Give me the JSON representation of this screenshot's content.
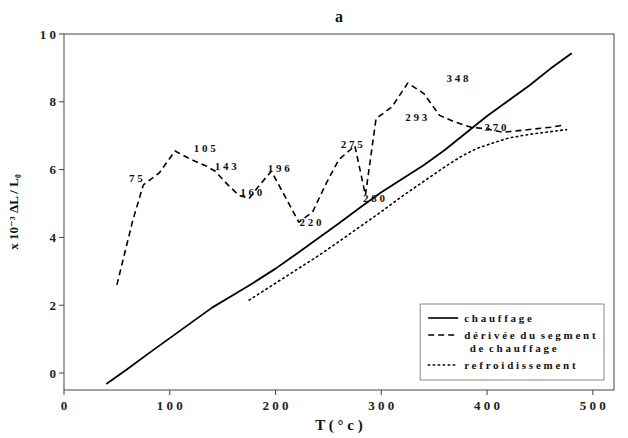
{
  "chart_data": {
    "type": "line",
    "title": "a",
    "xlabel": "T  ( ° c )",
    "ylabel": "x  10⁻³ ΔL / L₀",
    "xlim": [
      0,
      520
    ],
    "ylim": [
      -0.5,
      10
    ],
    "xticks": [
      0,
      {
        "value": 100,
        "label": "1 0 0"
      },
      {
        "value": 200,
        "label": "2 0 0"
      },
      {
        "value": 300,
        "label": "3 0 0"
      },
      {
        "value": 400,
        "label": "4 0 0"
      },
      {
        "value": 500,
        "label": "5 0 0"
      }
    ],
    "yticks": [
      0,
      2,
      4,
      6,
      8,
      {
        "value": 10,
        "label": "1 0"
      }
    ],
    "grid": false,
    "legend": "lower right",
    "series": [
      {
        "name": "c h a u f f a g e",
        "color": "black",
        "line_style": "solid",
        "x": [
          40,
          60,
          80,
          100,
          120,
          140,
          160,
          180,
          200,
          220,
          240,
          260,
          280,
          300,
          320,
          340,
          360,
          380,
          400,
          420,
          440,
          460,
          480
        ],
        "values": [
          -0.32,
          0.12,
          0.58,
          1.03,
          1.48,
          1.93,
          2.3,
          2.68,
          3.08,
          3.52,
          3.97,
          4.42,
          4.88,
          5.33,
          5.73,
          6.13,
          6.58,
          7.08,
          7.58,
          8.03,
          8.48,
          8.98,
          9.43
        ]
      },
      {
        "name": "d é r i v é e  d u  s e g m e n t\n  d e  c h a u f f a g e",
        "color": "black",
        "line_style": "dashed",
        "x": [
          50,
          65,
          75,
          90,
          105,
          120,
          135,
          143,
          155,
          165,
          175,
          185,
          196,
          210,
          222,
          235,
          248,
          260,
          275,
          285,
          295,
          310,
          325,
          340,
          355,
          370,
          385,
          400,
          415,
          430,
          445,
          460,
          470
        ],
        "values": [
          2.6,
          4.5,
          5.55,
          5.9,
          6.55,
          6.3,
          6.1,
          5.95,
          5.55,
          5.25,
          5.15,
          5.55,
          5.95,
          5.15,
          4.45,
          4.75,
          5.6,
          6.3,
          6.7,
          5.25,
          7.5,
          7.85,
          8.55,
          8.25,
          7.6,
          7.4,
          7.25,
          7.2,
          7.1,
          7.15,
          7.2,
          7.25,
          7.3
        ]
      },
      {
        "name": "r e f r o i d i s s e m e n t",
        "color": "black",
        "line_style": "dotted",
        "x": [
          175,
          190,
          205,
          220,
          240,
          260,
          280,
          300,
          320,
          340,
          360,
          375,
          390,
          405,
          420,
          440,
          460,
          475
        ],
        "values": [
          2.15,
          2.45,
          2.75,
          3.05,
          3.45,
          3.88,
          4.32,
          4.76,
          5.22,
          5.65,
          6.08,
          6.38,
          6.62,
          6.78,
          6.93,
          7.04,
          7.12,
          7.18
        ]
      }
    ],
    "annotations": [
      {
        "text": "7 5",
        "x": 68,
        "y": 5.75
      },
      {
        "text": "1 0 5",
        "x": 133,
        "y": 6.65
      },
      {
        "text": "1 4 3",
        "x": 153,
        "y": 6.1
      },
      {
        "text": "1 6 0",
        "x": 177,
        "y": 5.35
      },
      {
        "text": "1 9 6",
        "x": 203,
        "y": 6.05
      },
      {
        "text": "2 2 0",
        "x": 233,
        "y": 4.45
      },
      {
        "text": "2 7 5",
        "x": 272,
        "y": 6.75
      },
      {
        "text": "2 8 0",
        "x": 293,
        "y": 5.15
      },
      {
        "text": "2 9 3",
        "x": 333,
        "y": 7.55
      },
      {
        "text": "3 4 8",
        "x": 372,
        "y": 8.7
      },
      {
        "text": "3 7 0",
        "x": 408,
        "y": 7.25
      }
    ]
  }
}
